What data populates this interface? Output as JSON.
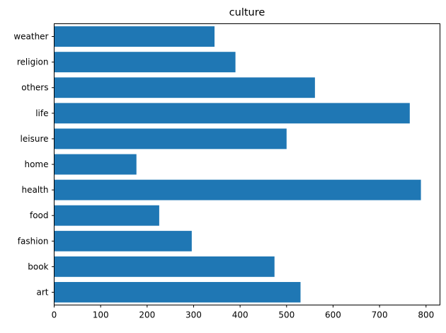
{
  "chart_data": {
    "type": "bar",
    "orientation": "horizontal",
    "title": "culture",
    "xlabel": "",
    "ylabel": "",
    "categories": [
      "art",
      "book",
      "fashion",
      "food",
      "health",
      "home",
      "leisure",
      "life",
      "others",
      "religion",
      "weather"
    ],
    "values": [
      530,
      474,
      296,
      226,
      789,
      177,
      500,
      765,
      561,
      390,
      345
    ],
    "xlim": [
      0,
      830
    ],
    "xticks": [
      0,
      100,
      200,
      300,
      400,
      500,
      600,
      700,
      800
    ],
    "grid": false,
    "bar_color": "#1f77b4"
  }
}
